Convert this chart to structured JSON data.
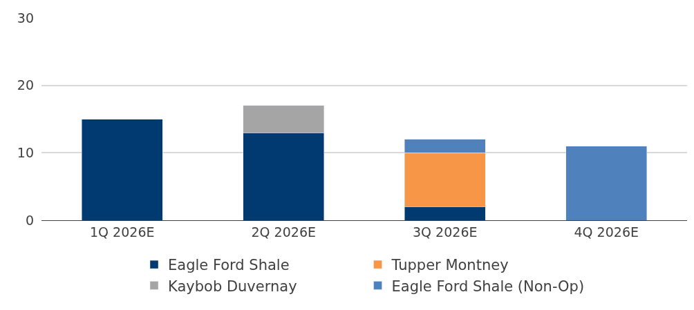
{
  "chart_data": {
    "type": "bar",
    "stacked": true,
    "categories": [
      "1Q 2026E",
      "2Q 2026E",
      "3Q 2026E",
      "4Q 2026E"
    ],
    "series": [
      {
        "name": "Eagle Ford Shale",
        "color": "#003a70",
        "values": [
          15,
          13,
          2,
          null
        ]
      },
      {
        "name": "Tupper Montney",
        "color": "#f79646",
        "values": [
          null,
          null,
          8,
          null
        ]
      },
      {
        "name": "Kaybob Duvernay",
        "color": "#a5a5a5",
        "values": [
          null,
          4,
          null,
          null
        ]
      },
      {
        "name": "Eagle Ford Shale (Non-Op)",
        "color": "#4f81bd",
        "values": [
          null,
          null,
          2,
          11
        ]
      }
    ],
    "ylim": [
      0,
      30
    ],
    "yticks": [
      0,
      10,
      20,
      30
    ],
    "grid": "y",
    "legend": "bottom"
  }
}
